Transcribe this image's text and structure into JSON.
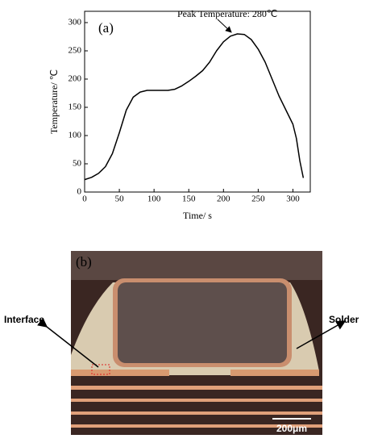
{
  "chart_data": {
    "type": "line",
    "panel_label": "(a)",
    "x_label": "Time/ s",
    "y_label": "Temperature/ ℃",
    "annotation": "Peak Temperature: 280℃",
    "x": [
      0,
      10,
      20,
      30,
      40,
      50,
      60,
      70,
      80,
      90,
      100,
      120,
      130,
      140,
      150,
      160,
      170,
      180,
      190,
      200,
      210,
      220,
      230,
      240,
      250,
      260,
      270,
      280,
      290,
      300,
      305,
      310,
      315
    ],
    "values": [
      22,
      26,
      33,
      45,
      68,
      105,
      145,
      168,
      177,
      180,
      180,
      180,
      182,
      188,
      196,
      205,
      215,
      230,
      250,
      266,
      276,
      280,
      279,
      270,
      253,
      230,
      200,
      170,
      145,
      120,
      95,
      55,
      25
    ],
    "color": "#000000",
    "xlim": [
      0,
      325
    ],
    "ylim": [
      0,
      320
    ],
    "xticks": [
      0,
      50,
      100,
      150,
      200,
      250,
      300
    ],
    "yticks": [
      0,
      50,
      100,
      150,
      200,
      250,
      300
    ]
  },
  "micrograph": {
    "panel_label": "(b)",
    "labels": [
      "Interface",
      "Solder"
    ],
    "scale_bar": "200μm"
  }
}
